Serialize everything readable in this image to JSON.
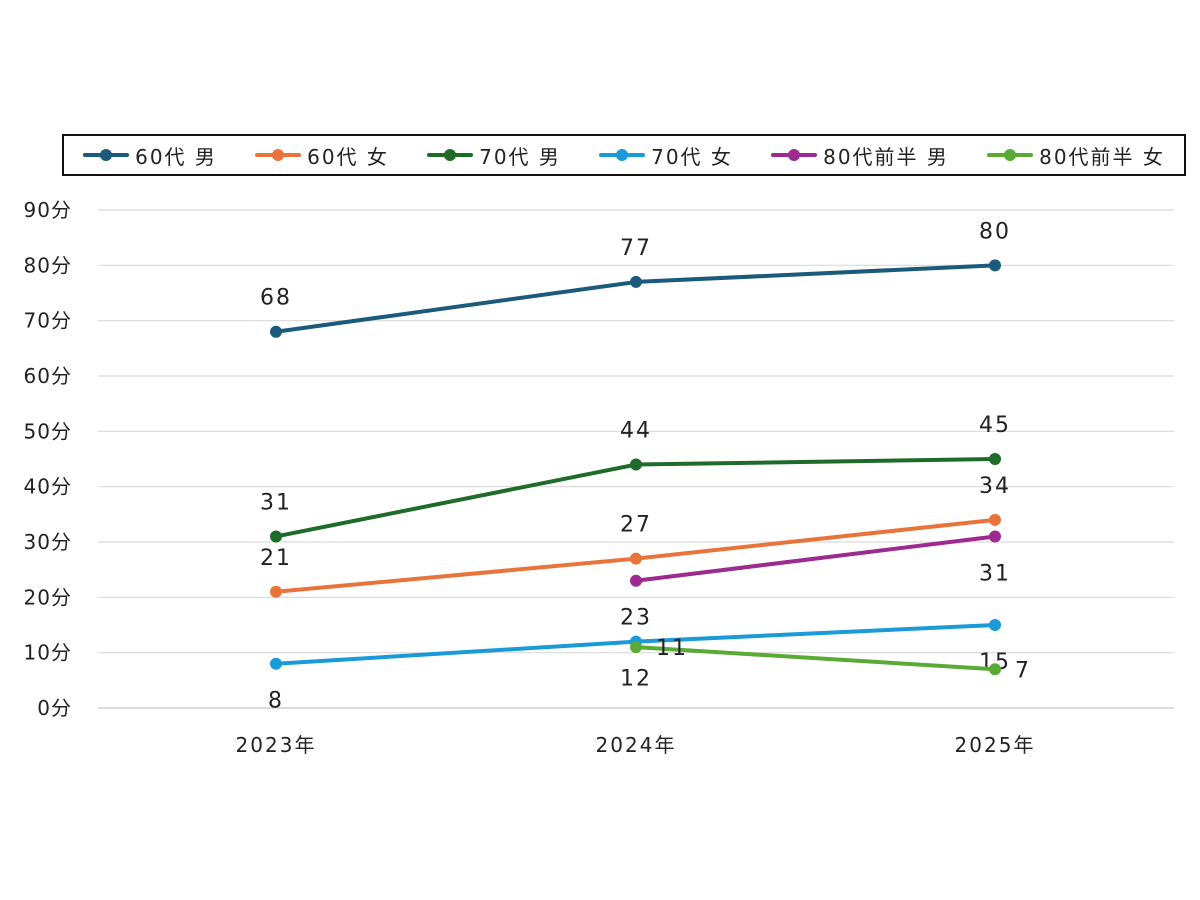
{
  "chart_data": {
    "type": "line",
    "title": "",
    "xlabel": "",
    "ylabel": "",
    "categories": [
      "2023年",
      "2024年",
      "2025年"
    ],
    "ylim": [
      0,
      90
    ],
    "y_ticks": [
      "0分",
      "10分",
      "20分",
      "30分",
      "40分",
      "50分",
      "60分",
      "70分",
      "80分",
      "90分"
    ],
    "grid": "horizontal",
    "legend_position": "top",
    "series": [
      {
        "name": "60代 男",
        "color": "#1b5a7a",
        "values": [
          68,
          77,
          80
        ],
        "labels": [
          "68",
          "77",
          "80"
        ],
        "label_pos": [
          "above",
          "above",
          "above"
        ]
      },
      {
        "name": "60代 女",
        "color": "#e8743b",
        "values": [
          21,
          27,
          34
        ],
        "labels": [
          "21",
          "27",
          "34"
        ],
        "label_pos": [
          "above",
          "above",
          "above"
        ]
      },
      {
        "name": "70代 男",
        "color": "#1e6b2a",
        "values": [
          31,
          44,
          45
        ],
        "labels": [
          "31",
          "44",
          "45"
        ],
        "label_pos": [
          "above",
          "above",
          "above"
        ]
      },
      {
        "name": "70代 女",
        "color": "#1a9ad6",
        "values": [
          8,
          12,
          15
        ],
        "labels": [
          "8",
          "12",
          "15"
        ],
        "label_pos": [
          "below",
          "below",
          "below"
        ]
      },
      {
        "name": "80代前半 男",
        "color": "#9c2a91",
        "values": [
          null,
          23,
          31
        ],
        "labels": [
          "",
          "23",
          "31"
        ],
        "label_pos": [
          "below",
          "below",
          "below"
        ]
      },
      {
        "name": "80代前半 女",
        "color": "#5aab35",
        "values": [
          null,
          11,
          7
        ],
        "labels": [
          "",
          "11",
          "7"
        ],
        "label_pos": [
          "right",
          "right",
          "right"
        ]
      }
    ]
  }
}
